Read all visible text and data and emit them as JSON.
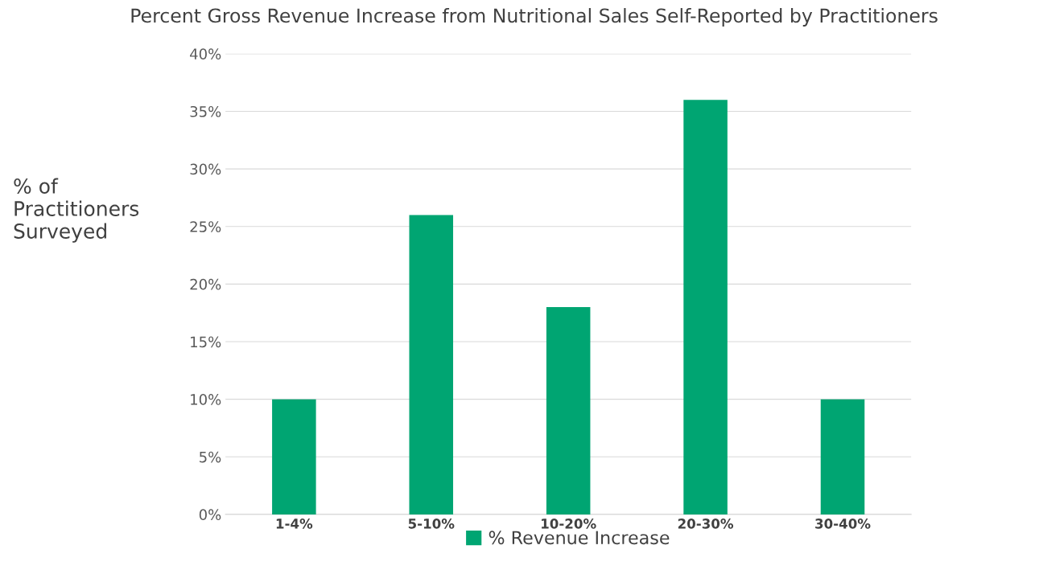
{
  "chart_data": {
    "type": "bar",
    "title": "Percent Gross Revenue Increase from Nutritional Sales Self-Reported by Practitioners",
    "ylabel": "% of\nPractitioners\nSurveyed",
    "categories": [
      "1-4%",
      "5-10%",
      "10-20%",
      "20-30%",
      "30-40%"
    ],
    "series": [
      {
        "name": "% Revenue Increase",
        "color": "#00a572",
        "values": [
          10,
          26,
          18,
          36,
          10
        ]
      }
    ],
    "ylim": [
      0,
      40
    ],
    "yticks": [
      {
        "value": 0,
        "label": "0%"
      },
      {
        "value": 5,
        "label": "5%"
      },
      {
        "value": 10,
        "label": "10%"
      },
      {
        "value": 15,
        "label": "15%"
      },
      {
        "value": 20,
        "label": "20%"
      },
      {
        "value": 25,
        "label": "25%"
      },
      {
        "value": 30,
        "label": "30%"
      },
      {
        "value": 35,
        "label": "35%"
      },
      {
        "value": 40,
        "label": "40%"
      }
    ],
    "grid": "y",
    "legend": "bottom"
  }
}
